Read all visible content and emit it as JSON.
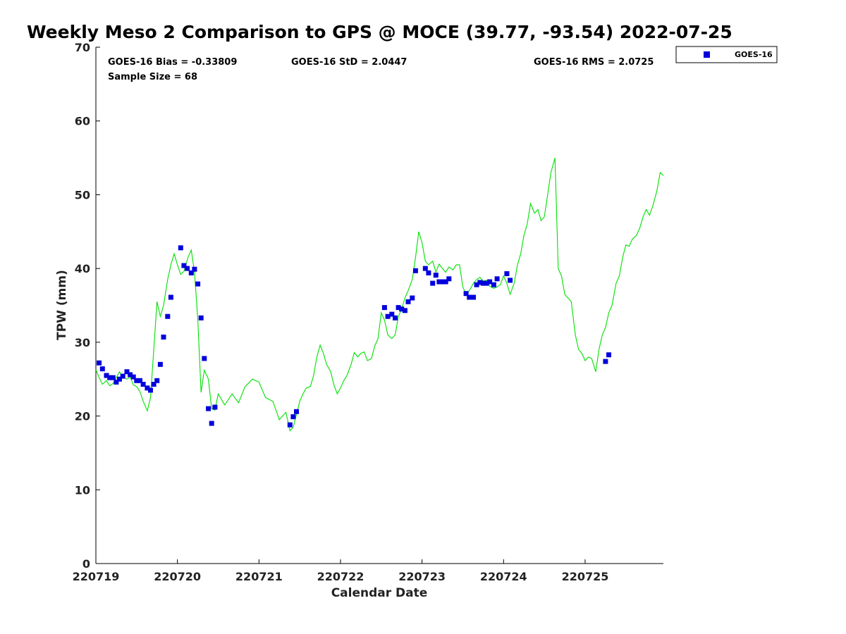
{
  "chart_data": {
    "type": "scatter",
    "title": "Weekly Meso 2 Comparison to GPS @ MOCE (39.77, -93.54) 2022-07-25",
    "xlabel": "Calendar Date",
    "ylabel": "TPW (mm)",
    "xlim": [
      0,
      6.96
    ],
    "ylim": [
      0,
      70
    ],
    "x_tick_labels": [
      "220719",
      "220720",
      "220721",
      "220722",
      "220723",
      "220724",
      "220725"
    ],
    "y_ticks": [
      0,
      10,
      20,
      30,
      40,
      50,
      60,
      70
    ],
    "grid": false,
    "legend_position": "top-right",
    "stats": {
      "bias": "GOES-16 Bias = -0.33809",
      "std": "GOES-16 StD = 2.0447",
      "rms": "GOES-16 RMS = 2.0725",
      "sample": "Sample Size = 68"
    },
    "colors": {
      "goes": "#0000dd",
      "gps": "#00e000"
    },
    "series": [
      {
        "name": "GOES-16",
        "style": "markers",
        "x": [
          0.04,
          0.08,
          0.13,
          0.17,
          0.21,
          0.25,
          0.29,
          0.33,
          0.38,
          0.42,
          0.46,
          0.5,
          0.54,
          0.58,
          0.63,
          0.67,
          0.71,
          0.75,
          0.79,
          0.83,
          0.88,
          0.92,
          1.04,
          1.08,
          1.12,
          1.17,
          1.21,
          1.25,
          1.29,
          1.33,
          1.38,
          1.42,
          1.46,
          2.38,
          2.42,
          2.46,
          3.54,
          3.58,
          3.63,
          3.67,
          3.71,
          3.75,
          3.79,
          3.83,
          3.88,
          3.92,
          4.04,
          4.08,
          4.13,
          4.17,
          4.21,
          4.25,
          4.29,
          4.33,
          4.54,
          4.58,
          4.63,
          4.67,
          4.71,
          4.75,
          4.79,
          4.83,
          4.88,
          4.92,
          5.04,
          5.08,
          6.25,
          6.29
        ],
        "y": [
          27.2,
          26.4,
          25.5,
          25.2,
          25.2,
          24.6,
          25.0,
          25.4,
          26.0,
          25.6,
          25.3,
          24.8,
          24.8,
          24.3,
          23.8,
          23.5,
          24.3,
          24.8,
          27.0,
          30.7,
          33.5,
          36.1,
          42.8,
          40.4,
          40.0,
          39.4,
          39.9,
          37.9,
          33.3,
          27.8,
          21.0,
          19.0,
          21.2,
          18.8,
          19.9,
          20.6,
          34.7,
          33.5,
          33.8,
          33.3,
          34.7,
          34.5,
          34.3,
          35.5,
          36.0,
          39.7,
          40.0,
          39.4,
          38.0,
          39.1,
          38.2,
          38.2,
          38.2,
          38.6,
          36.6,
          36.1,
          36.1,
          37.8,
          38.1,
          38.0,
          38.0,
          38.2,
          37.8,
          38.6,
          39.3,
          38.4,
          27.4,
          28.3
        ]
      },
      {
        "name": "",
        "style": "line",
        "x": [
          0.0,
          0.04,
          0.08,
          0.13,
          0.17,
          0.21,
          0.25,
          0.29,
          0.33,
          0.38,
          0.42,
          0.46,
          0.5,
          0.54,
          0.58,
          0.63,
          0.67,
          0.71,
          0.75,
          0.79,
          0.83,
          0.88,
          0.92,
          0.96,
          1.0,
          1.04,
          1.08,
          1.13,
          1.17,
          1.21,
          1.25,
          1.29,
          1.33,
          1.38,
          1.42,
          1.46,
          1.5,
          1.58,
          1.67,
          1.75,
          1.83,
          1.92,
          2.0,
          2.08,
          2.17,
          2.25,
          2.33,
          2.38,
          2.42,
          2.46,
          2.5,
          2.54,
          2.58,
          2.63,
          2.67,
          2.71,
          2.75,
          2.79,
          2.83,
          2.88,
          2.92,
          2.96,
          3.0,
          3.04,
          3.08,
          3.13,
          3.17,
          3.21,
          3.25,
          3.29,
          3.33,
          3.38,
          3.42,
          3.46,
          3.5,
          3.54,
          3.58,
          3.63,
          3.67,
          3.71,
          3.75,
          3.79,
          3.83,
          3.88,
          3.92,
          3.96,
          4.0,
          4.04,
          4.08,
          4.13,
          4.17,
          4.21,
          4.25,
          4.29,
          4.33,
          4.38,
          4.42,
          4.46,
          4.5,
          4.54,
          4.58,
          4.63,
          4.67,
          4.71,
          4.75,
          4.79,
          4.83,
          4.88,
          4.92,
          4.96,
          5.0,
          5.04,
          5.08,
          5.13,
          5.17,
          5.21,
          5.25,
          5.29,
          5.33,
          5.38,
          5.42,
          5.46,
          5.5,
          5.54,
          5.58,
          5.63,
          5.67,
          5.71,
          5.75,
          5.79,
          5.83,
          5.88,
          5.92,
          5.96,
          6.0,
          6.04,
          6.08,
          6.13,
          6.17,
          6.21,
          6.25,
          6.29,
          6.33,
          6.38,
          6.42,
          6.46,
          6.5,
          6.54,
          6.58,
          6.63,
          6.67,
          6.71,
          6.75,
          6.79,
          6.83,
          6.88,
          6.92,
          6.96
        ],
        "y": [
          26.3,
          25.2,
          24.3,
          24.8,
          24.1,
          24.4,
          25.2,
          26.0,
          25.2,
          25.0,
          25.3,
          24.2,
          24.0,
          23.3,
          22.0,
          20.7,
          22.5,
          29.0,
          35.5,
          33.5,
          35.0,
          38.5,
          40.5,
          42.0,
          40.5,
          39.2,
          39.6,
          41.5,
          42.5,
          39.5,
          33.0,
          23.2,
          26.2,
          25.0,
          21.0,
          20.8,
          23.0,
          21.5,
          23.0,
          21.8,
          24.0,
          25.0,
          24.6,
          22.5,
          22.0,
          19.5,
          20.5,
          18.0,
          18.5,
          20.2,
          22.0,
          23.0,
          23.8,
          24.0,
          25.5,
          28.0,
          29.6,
          28.5,
          27.0,
          26.0,
          24.2,
          23.0,
          23.8,
          24.8,
          25.5,
          27.0,
          28.6,
          28.0,
          28.5,
          28.7,
          27.5,
          27.8,
          29.5,
          30.5,
          34.0,
          33.0,
          31.0,
          30.5,
          31.0,
          33.5,
          34.5,
          36.0,
          37.0,
          38.5,
          41.5,
          45.0,
          43.5,
          41.0,
          40.5,
          41.0,
          39.5,
          40.6,
          40.0,
          39.5,
          40.2,
          39.8,
          40.5,
          40.5,
          37.5,
          36.5,
          37.0,
          38.0,
          38.5,
          38.8,
          38.3,
          38.4,
          37.6,
          37.3,
          37.5,
          37.8,
          39.0,
          38.0,
          36.5,
          38.0,
          40.5,
          42.0,
          44.5,
          46.0,
          48.8,
          47.5,
          48.0,
          46.5,
          47.0,
          50.0,
          53.0,
          55.0,
          40.0,
          39.0,
          36.5,
          36.0,
          35.5,
          31.0,
          29.0,
          28.5,
          27.5,
          28.0,
          27.8,
          26.0,
          29.0,
          31.0,
          32.0,
          34.0,
          35.0,
          38.0,
          39.0,
          41.5,
          43.2,
          43.0,
          44.0,
          44.5,
          45.5,
          47.0,
          48.0,
          47.2,
          48.5,
          50.5,
          53.0,
          52.6
        ]
      }
    ]
  }
}
